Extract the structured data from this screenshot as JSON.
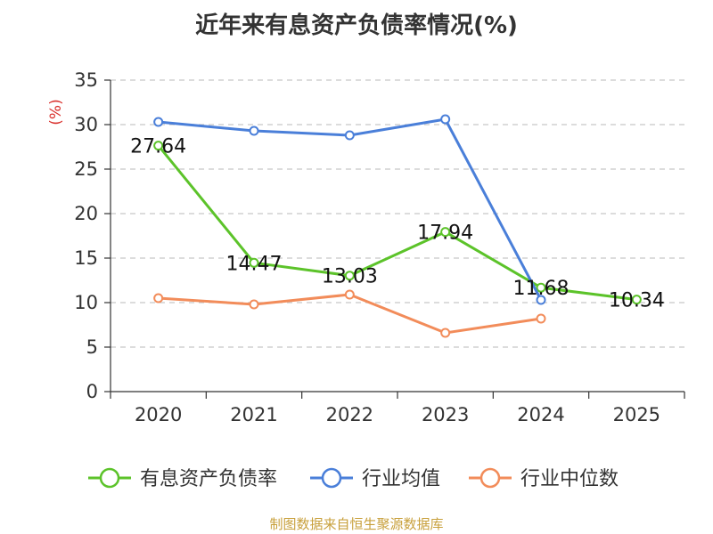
{
  "chart_data": {
    "type": "line",
    "title": "近年来有息资产负债率情况(%)",
    "ylabel": "(%)",
    "xlabel": "",
    "categories": [
      "2020",
      "2021",
      "2022",
      "2023",
      "2024",
      "2025"
    ],
    "ylim": [
      0,
      35
    ],
    "yticks": [
      0,
      5,
      10,
      15,
      20,
      25,
      30,
      35
    ],
    "grid": true,
    "legend_position": "bottom",
    "series": [
      {
        "name": "有息资产负债率",
        "color": "#5cc32a",
        "values": [
          27.64,
          14.47,
          13.03,
          17.94,
          11.68,
          10.34
        ],
        "labels": [
          "27.64",
          "14.47",
          "13.03",
          "17.94",
          "11.68",
          "10.34"
        ]
      },
      {
        "name": "行业均值",
        "color": "#4a7fd9",
        "values": [
          30.3,
          29.3,
          28.8,
          30.6,
          10.3,
          null
        ]
      },
      {
        "name": "行业中位数",
        "color": "#f28c5a",
        "values": [
          10.5,
          9.8,
          10.9,
          6.6,
          8.2,
          null
        ]
      }
    ]
  },
  "source": "制图数据来自恒生聚源数据库"
}
